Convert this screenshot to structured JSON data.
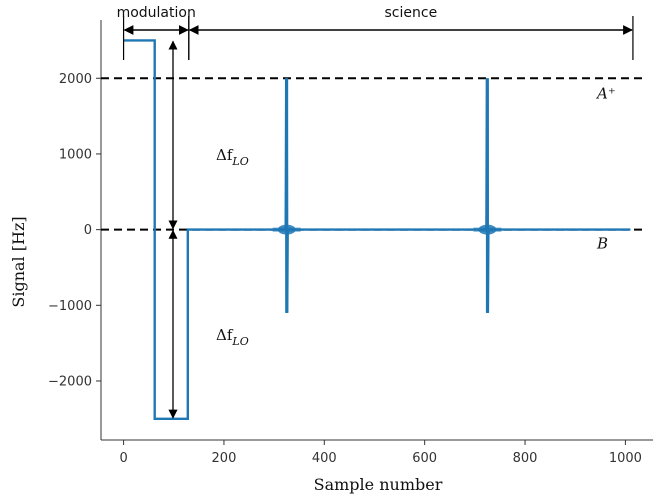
{
  "chart_data": {
    "type": "line",
    "xlabel": "Sample number",
    "ylabel": "Signal [Hz]",
    "xlim": [
      -45,
      1055
    ],
    "ylim": [
      -2780,
      2770
    ],
    "x_ticks": [
      0,
      200,
      400,
      600,
      800,
      1000
    ],
    "x_tick_labels": [
      "0",
      "200",
      "400",
      "600",
      "800",
      "1000"
    ],
    "y_ticks": [
      -2000,
      -1000,
      0,
      1000,
      2000
    ],
    "y_tick_labels": [
      "−2000",
      "−1000",
      "0",
      "1000",
      "2000"
    ],
    "grid": false,
    "series_color": "#1f77b4",
    "series": [
      {
        "x": [
          0,
          62,
          62,
          128,
          128,
          320,
          323,
          324,
          325,
          325,
          326,
          327,
          330,
          720,
          723,
          724,
          725,
          725,
          726,
          727,
          730,
          1010
        ],
        "y": [
          2500,
          2500,
          -2500,
          -2500,
          0,
          0,
          0,
          2000,
          -1100,
          2000,
          -1100,
          0,
          0,
          0,
          0,
          2000,
          -1100,
          2000,
          -1100,
          0,
          0,
          0
        ]
      }
    ],
    "reference_lines": [
      {
        "y": 2000,
        "label": "A⁺",
        "style": "dashed"
      },
      {
        "y": 0,
        "label": "B",
        "style": "dashed"
      }
    ],
    "spans": [
      {
        "label": "modulation",
        "x_start": 0,
        "x_end": 130
      },
      {
        "label": "science",
        "x_start": 130,
        "x_end": 1015
      }
    ],
    "delta_annotations": [
      {
        "label": "Δf",
        "subscript": "LO",
        "from": 2500,
        "to": 0
      },
      {
        "label": "Δf",
        "subscript": "LO",
        "from": 0,
        "to": -2500
      }
    ]
  }
}
